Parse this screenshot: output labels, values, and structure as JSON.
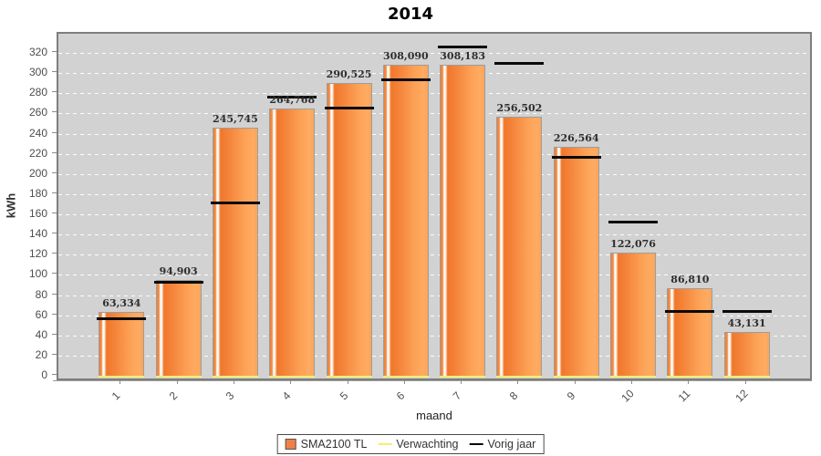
{
  "chart_data": {
    "type": "bar",
    "title": "2014",
    "xlabel": "maand",
    "ylabel": "kWh",
    "categories": [
      "1",
      "2",
      "3",
      "4",
      "5",
      "6",
      "7",
      "8",
      "9",
      "10",
      "11",
      "12"
    ],
    "series": [
      {
        "name": "SMA2100 TL",
        "type": "bar",
        "color": "#f08048",
        "values": [
          63.334,
          94.903,
          245.745,
          264.768,
          290.525,
          308.09,
          308.183,
          256.502,
          226.564,
          122.076,
          86.81,
          43.131
        ],
        "data_labels": [
          "63,334",
          "94,903",
          "245,745",
          "264,768",
          "290,525",
          "308,090",
          "308,183",
          "256,502",
          "226,564",
          "122,076",
          "86,810",
          "43,131"
        ]
      },
      {
        "name": "Verwachting",
        "type": "line",
        "color": "#f2ef6e",
        "values": [
          1,
          1,
          1,
          1,
          1,
          1,
          1,
          1,
          1,
          1,
          1,
          1
        ]
      },
      {
        "name": "Vorig jaar",
        "type": "line",
        "color": "#0a0a0a",
        "values": [
          57,
          93,
          172,
          277,
          266,
          294,
          326,
          310,
          217,
          153,
          64,
          64
        ]
      }
    ],
    "ylim": [
      0,
      339
    ],
    "yticks": [
      0,
      20,
      40,
      60,
      80,
      100,
      120,
      140,
      160,
      180,
      200,
      220,
      240,
      260,
      280,
      300,
      320
    ],
    "grid": "horizontal white dashed",
    "plot_background": "#d2d2d2",
    "legend_position": "bottom"
  }
}
